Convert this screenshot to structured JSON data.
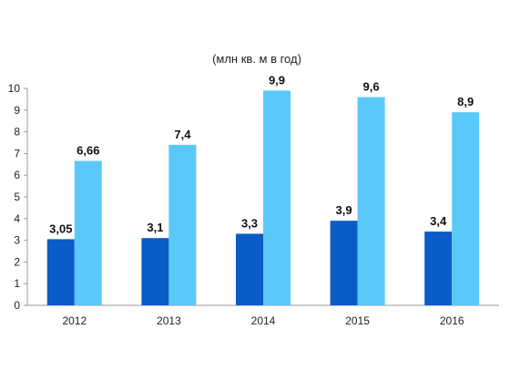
{
  "chart_data": {
    "type": "bar",
    "title": "",
    "subtitle": "(млн кв. м в год)",
    "xlabel": "",
    "ylabel": "",
    "categories": [
      "2012",
      "2013",
      "2014",
      "2015",
      "2016"
    ],
    "series": [
      {
        "values": [
          3.05,
          3.1,
          3.3,
          3.9,
          3.4
        ],
        "labels": [
          "3,05",
          "3,1",
          "3,3",
          "3,9",
          "3,4"
        ],
        "color": "#0a5cc7"
      },
      {
        "values": [
          6.66,
          7.4,
          9.9,
          9.6,
          8.9
        ],
        "labels": [
          "6,66",
          "7,4",
          "9,9",
          "9,6",
          "8,9"
        ],
        "color": "#5bc8fa"
      }
    ],
    "ylim": [
      0,
      10
    ],
    "yticks": [
      0,
      1,
      2,
      3,
      4,
      5,
      6,
      7,
      8,
      9,
      10
    ],
    "grid": false,
    "legend": "none"
  }
}
